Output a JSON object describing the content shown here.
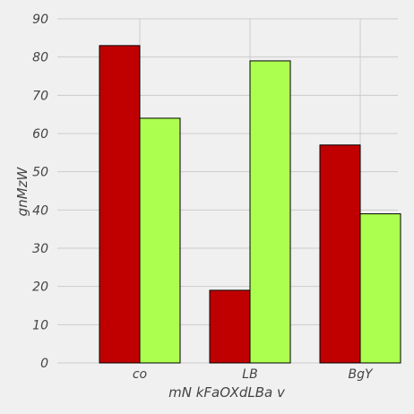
{
  "chart_data": {
    "type": "bar",
    "categories": [
      "co",
      "LB",
      "BgY"
    ],
    "series": [
      {
        "values": [
          83,
          19,
          57
        ],
        "color": "#c00000"
      },
      {
        "values": [
          64,
          79,
          39
        ],
        "color": "#adff4f"
      }
    ],
    "xlabel": "mN kFaOXdLBa v",
    "ylabel": "gnMzW",
    "ylim": [
      0,
      90
    ],
    "yticks": [
      0,
      10,
      20,
      30,
      40,
      50,
      60,
      70,
      80,
      90
    ],
    "grid": true,
    "background": "#f0f0f0"
  }
}
